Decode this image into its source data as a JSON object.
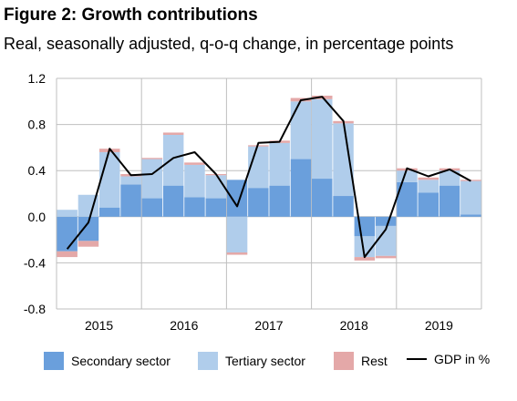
{
  "header": {
    "title": "Figure 2: Growth contributions",
    "subtitle": "Real, seasonally adjusted, q-o-q change, in percentage points"
  },
  "colors": {
    "secondary": "#6a9fdc",
    "tertiary": "#b0cdeb",
    "rest": "#e4a8a8",
    "gdp_line": "#000000",
    "grid": "#bfbfbf"
  },
  "chart_data": {
    "type": "bar",
    "stacked": true,
    "quarters": [
      "2015Q1",
      "2015Q2",
      "2015Q3",
      "2015Q4",
      "2016Q1",
      "2016Q2",
      "2016Q3",
      "2016Q4",
      "2017Q1",
      "2017Q2",
      "2017Q3",
      "2017Q4",
      "2018Q1",
      "2018Q2",
      "2018Q3",
      "2018Q4",
      "2019Q1",
      "2019Q2",
      "2019Q3",
      "2019Q4"
    ],
    "year_labels": [
      "2015",
      "2016",
      "2017",
      "2018",
      "2019"
    ],
    "series": [
      {
        "name": "Secondary sector",
        "values": [
          -0.3,
          -0.21,
          0.08,
          0.28,
          0.16,
          0.27,
          0.17,
          0.16,
          0.32,
          0.25,
          0.27,
          0.5,
          0.33,
          0.18,
          -0.17,
          -0.08,
          0.3,
          0.21,
          0.27,
          0.02
        ]
      },
      {
        "name": "Tertiary sector",
        "values": [
          0.06,
          0.19,
          0.48,
          0.07,
          0.34,
          0.44,
          0.28,
          0.2,
          -0.31,
          0.36,
          0.37,
          0.5,
          0.69,
          0.63,
          -0.18,
          -0.26,
          0.1,
          0.11,
          0.13,
          0.29
        ]
      },
      {
        "name": "Rest",
        "values": [
          -0.05,
          -0.05,
          0.03,
          0.02,
          0.01,
          0.02,
          0.02,
          0.01,
          -0.02,
          0.01,
          0.02,
          0.03,
          0.03,
          0.02,
          -0.03,
          -0.02,
          0.02,
          0.02,
          0.02,
          0.01
        ]
      }
    ],
    "line": {
      "name": "GDP in %",
      "values": [
        -0.28,
        -0.05,
        0.59,
        0.36,
        0.37,
        0.51,
        0.56,
        0.37,
        0.09,
        0.64,
        0.65,
        1.01,
        1.04,
        0.83,
        -0.35,
        -0.11,
        0.42,
        0.35,
        0.41,
        0.31
      ]
    },
    "ylim": [
      -0.8,
      1.2
    ],
    "yticks": [
      -0.8,
      -0.4,
      0.0,
      0.4,
      0.8,
      1.2
    ],
    "grid": "horizontal",
    "legend_position": "bottom"
  },
  "legend": {
    "secondary": "Secondary sector",
    "tertiary": "Tertiary sector",
    "rest": "Rest",
    "gdp": "GDP in %"
  }
}
